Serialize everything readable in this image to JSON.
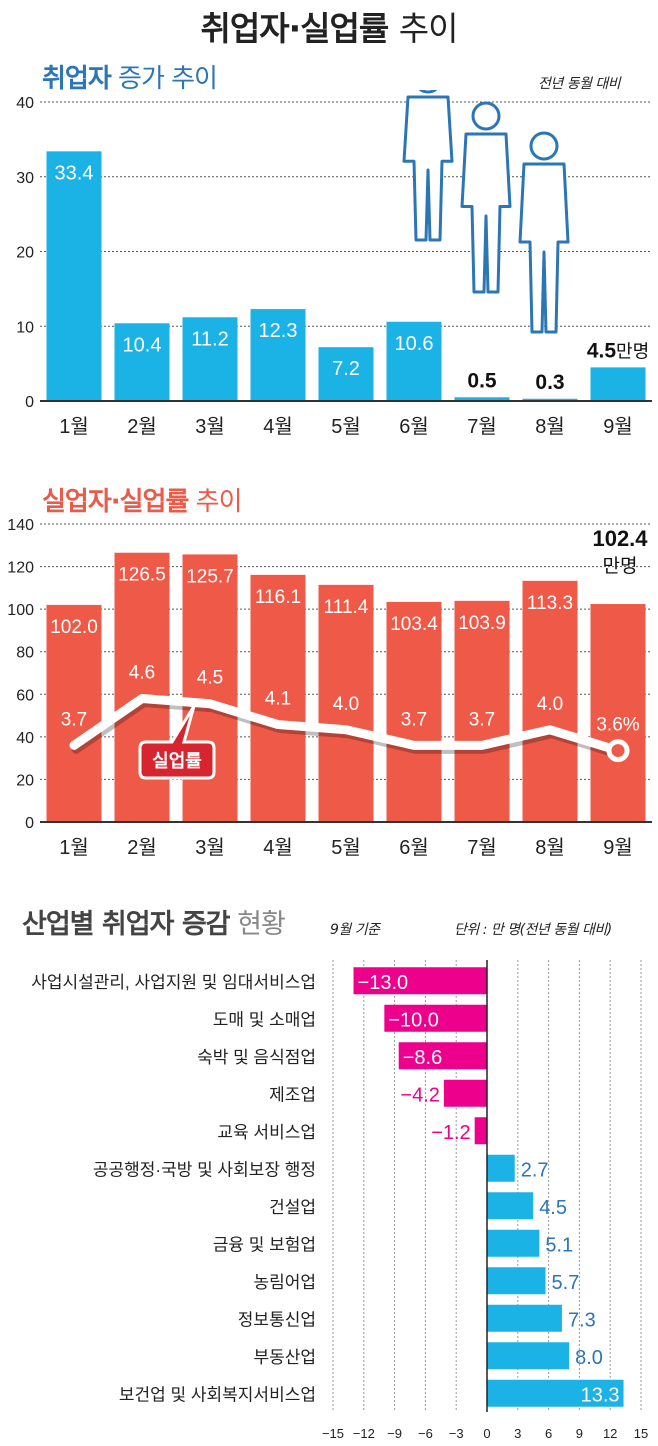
{
  "header": {
    "title_bold": "취업자·실업률",
    "title_light": "추이"
  },
  "colors": {
    "employed_bar": "#1BB3E6",
    "employed_title": "#2C76B5",
    "unemployed_bar": "#EF5A48",
    "unemployed_title": "#EA5B4A",
    "rate_line": "#FFFFFF",
    "callout": "#D7252F",
    "negative_bar": "#EC008C",
    "positive_bar": "#1BB3E6",
    "positive_label": "#2C76B5",
    "industry_title": "#444444"
  },
  "chart_data": [
    {
      "id": "employed",
      "type": "bar",
      "title_bold": "취업자",
      "title_light": "증가 추이",
      "note": "전년 동월 대비",
      "categories": [
        "1월",
        "2월",
        "3월",
        "4월",
        "5월",
        "6월",
        "7월",
        "8월",
        "9월"
      ],
      "values": [
        33.4,
        10.4,
        11.2,
        12.3,
        7.2,
        10.6,
        0.5,
        0.3,
        4.5
      ],
      "value_labels": [
        "33.4",
        "10.4",
        "11.2",
        "12.3",
        "7.2",
        "10.6",
        "0.5",
        "0.3",
        "4.5"
      ],
      "last_unit": "만명",
      "unit": "만명",
      "yticks": [
        0,
        10,
        20,
        30,
        40
      ],
      "ylim": [
        0,
        40
      ],
      "grid": true,
      "xlabel": "",
      "ylabel": ""
    },
    {
      "id": "unemployed",
      "type": "bar+line",
      "title_bold": "실업자·실업률",
      "title_light": "추이",
      "categories": [
        "1월",
        "2월",
        "3월",
        "4월",
        "5월",
        "6월",
        "7월",
        "8월",
        "9월"
      ],
      "series": [
        {
          "name": "실업자",
          "kind": "bar",
          "values": [
            102.0,
            126.5,
            125.7,
            116.1,
            111.4,
            103.4,
            103.9,
            113.3,
            102.4
          ],
          "value_labels": [
            "102.0",
            "126.5",
            "125.7",
            "116.1",
            "111.4",
            "103.4",
            "103.9",
            "113.3",
            "102.4"
          ],
          "last_unit": "만명"
        },
        {
          "name": "실업률",
          "kind": "line",
          "values": [
            3.7,
            4.6,
            4.5,
            4.1,
            4.0,
            3.7,
            3.7,
            4.0,
            3.6
          ],
          "value_labels": [
            "3.7",
            "4.6",
            "4.5",
            "4.1",
            "4.0",
            "3.7",
            "3.7",
            "4.0",
            "3.6%"
          ],
          "unit": "%"
        }
      ],
      "callout_label": "실업률",
      "yticks": [
        0,
        20,
        40,
        60,
        80,
        100,
        120,
        140
      ],
      "ylim": [
        0,
        140
      ],
      "grid": true
    },
    {
      "id": "industry",
      "type": "bar",
      "orientation": "horizontal",
      "title_bold": "산업별 취업자 증감",
      "title_light": "현황",
      "basis": "9월 기준",
      "unit_note": "단위 : 만 명(전년 동월 대비)",
      "categories": [
        "사업시설관리, 사업지원 및 임대서비스업",
        "도매 및 소매업",
        "숙박 및 음식점업",
        "제조업",
        "교육 서비스업",
        "공공행정·국방 및 사회보장 행정",
        "건설업",
        "금융 및 보험업",
        "농림어업",
        "정보통신업",
        "부동산업",
        "보건업 및 사회복지서비스업"
      ],
      "values": [
        -13.0,
        -10.0,
        -8.6,
        -4.2,
        -1.2,
        2.7,
        4.5,
        5.1,
        5.7,
        7.3,
        8.0,
        13.3
      ],
      "value_labels": [
        "−13.0",
        "−10.0",
        "−8.6",
        "−4.2",
        "−1.2",
        "2.7",
        "4.5",
        "5.1",
        "5.7",
        "7.3",
        "8.0",
        "13.3"
      ],
      "xticks": [
        -15,
        -12,
        -9,
        -6,
        -3,
        0,
        3,
        6,
        9,
        12,
        15
      ],
      "xtick_labels": [
        "−15",
        "−12",
        "−9",
        "−6",
        "−3",
        "0",
        "3",
        "6",
        "9",
        "12",
        "15"
      ],
      "xlim": [
        -15,
        15
      ],
      "grid": true
    }
  ]
}
